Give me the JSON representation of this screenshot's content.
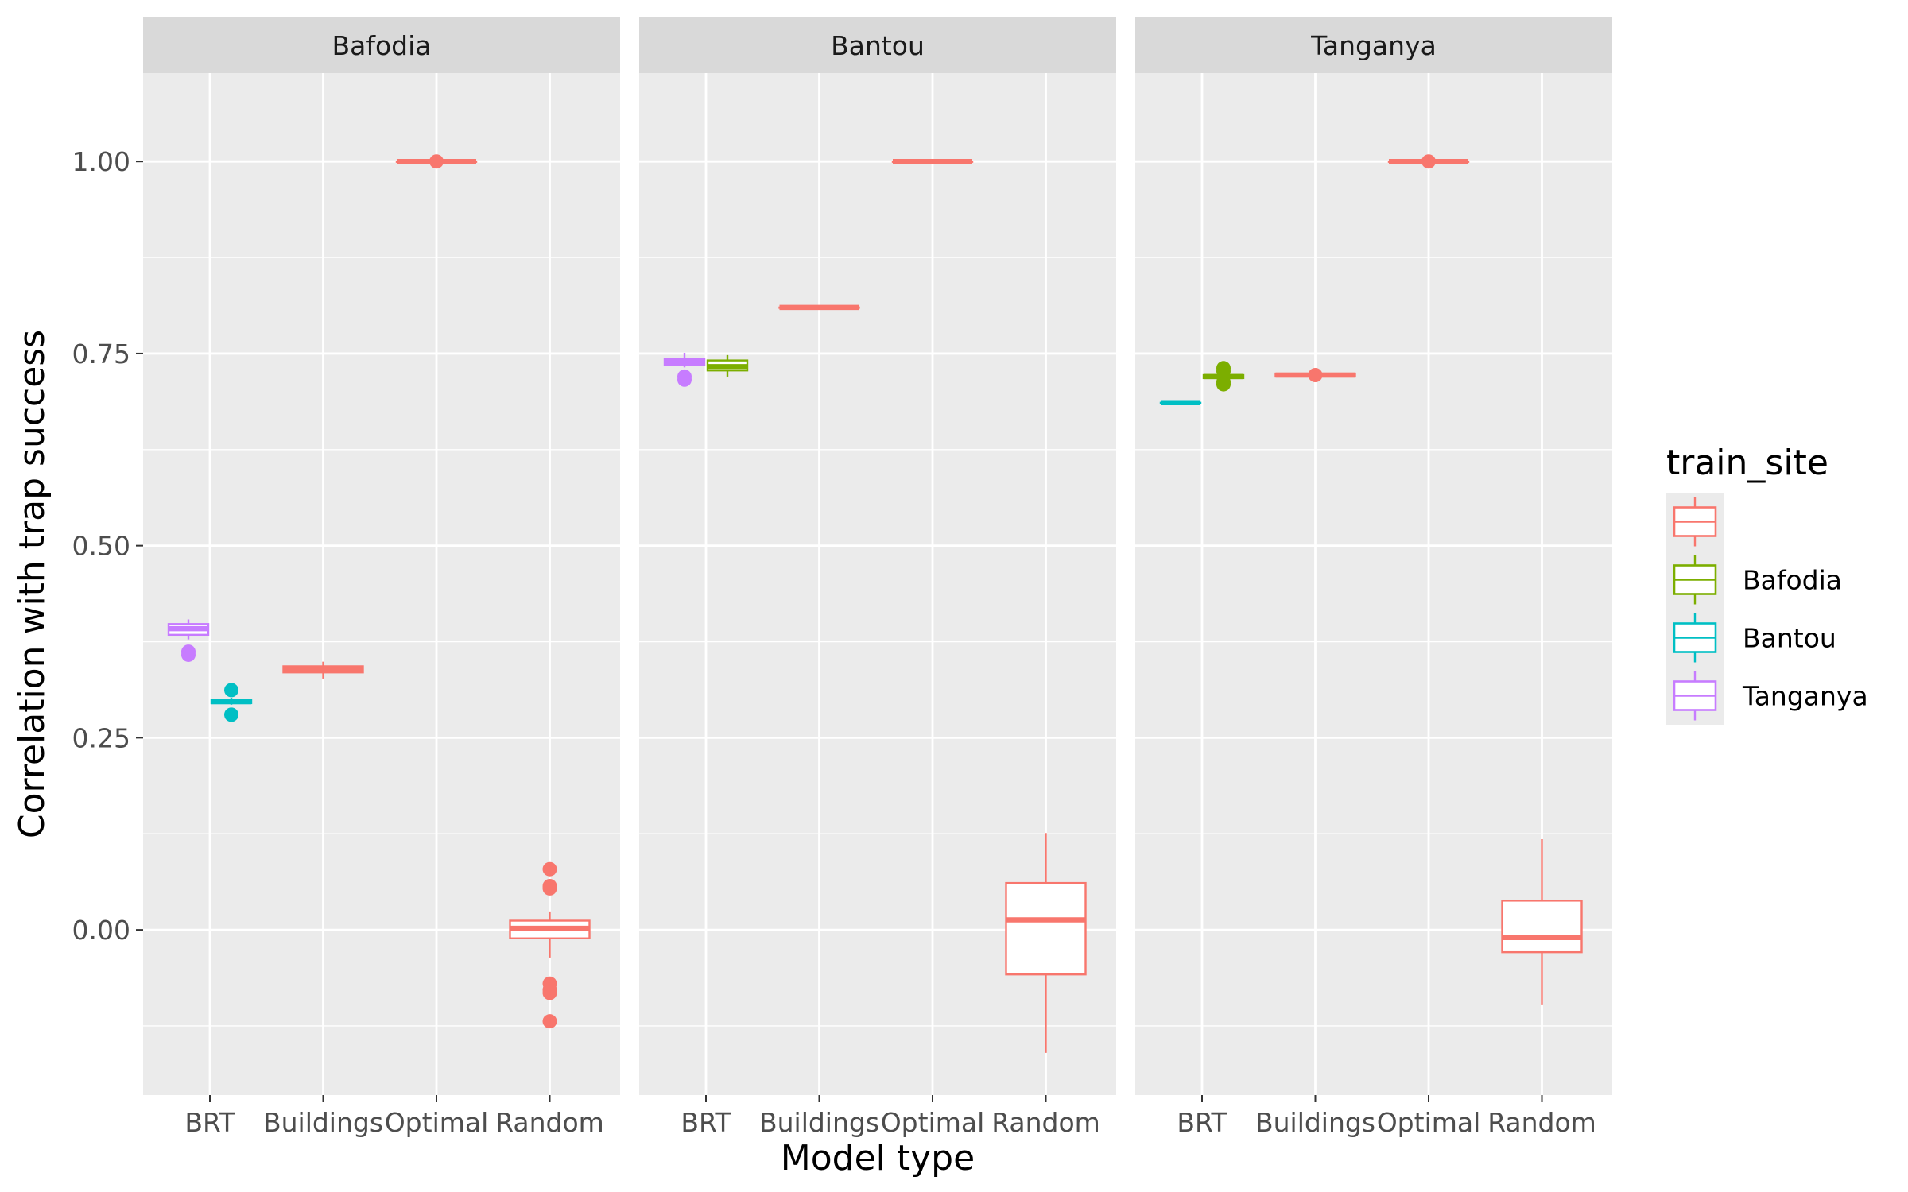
{
  "chart_data": {
    "type": "box",
    "xlabel": "Model type",
    "ylabel": "Correlation with trap success",
    "categories": [
      "BRT",
      "Buildings",
      "Optimal",
      "Random"
    ],
    "yticks": [
      "0.00",
      "0.25",
      "0.50",
      "0.75",
      "1.00"
    ],
    "ylim": [
      -0.215,
      1.115
    ],
    "grid": true,
    "legend": {
      "title": "train_site",
      "position": "right",
      "entries": [
        {
          "label": "",
          "color": "#F8766D"
        },
        {
          "label": "Bafodia",
          "color": "#7CAE00"
        },
        {
          "label": "Bantou",
          "color": "#00BFC4"
        },
        {
          "label": "Tanganya",
          "color": "#C77CFF"
        }
      ]
    },
    "panels": [
      {
        "title": "Bafodia",
        "boxes": [
          {
            "category": "BRT",
            "series": "Tanganya",
            "color": "#C77CFF",
            "offset": -1,
            "count": 2,
            "min": 0.378,
            "q1": 0.384,
            "median": 0.392,
            "q3": 0.398,
            "max": 0.404,
            "outliers": [
              0.358,
              0.362
            ]
          },
          {
            "category": "BRT",
            "series": "Bantou",
            "color": "#00BFC4",
            "offset": 1,
            "count": 2,
            "min": 0.293,
            "q1": 0.295,
            "median": 0.297,
            "q3": 0.299,
            "max": 0.302,
            "outliers": [
              0.28,
              0.312
            ]
          },
          {
            "category": "Buildings",
            "series": "",
            "color": "#F8766D",
            "offset": 0,
            "count": 1,
            "min": 0.327,
            "q1": 0.335,
            "median": 0.339,
            "q3": 0.343,
            "max": 0.349,
            "outliers": []
          },
          {
            "category": "Optimal",
            "series": "",
            "color": "#F8766D",
            "offset": 0,
            "count": 1,
            "min": 1.0,
            "q1": 1.0,
            "median": 1.0,
            "q3": 1.0,
            "max": 1.0,
            "outliers": [
              1.0
            ]
          },
          {
            "category": "Random",
            "series": "",
            "color": "#F8766D",
            "offset": 0,
            "count": 1,
            "min": -0.036,
            "q1": -0.011,
            "median": 0.002,
            "q3": 0.012,
            "max": 0.023,
            "outliers": [
              0.079,
              0.057,
              0.054,
              -0.07,
              -0.078,
              -0.082,
              -0.119
            ]
          }
        ]
      },
      {
        "title": "Bantou",
        "boxes": [
          {
            "category": "BRT",
            "series": "Tanganya",
            "color": "#C77CFF",
            "offset": -1,
            "count": 2,
            "min": 0.732,
            "q1": 0.735,
            "median": 0.739,
            "q3": 0.743,
            "max": 0.751,
            "outliers": [
              0.716,
              0.72
            ]
          },
          {
            "category": "BRT",
            "series": "Bafodia",
            "color": "#7CAE00",
            "offset": 1,
            "count": 2,
            "min": 0.72,
            "q1": 0.728,
            "median": 0.733,
            "q3": 0.741,
            "max": 0.748,
            "outliers": []
          },
          {
            "category": "Buildings",
            "series": "",
            "color": "#F8766D",
            "offset": 0,
            "count": 1,
            "min": 0.81,
            "q1": 0.81,
            "median": 0.81,
            "q3": 0.81,
            "max": 0.81,
            "outliers": []
          },
          {
            "category": "Optimal",
            "series": "",
            "color": "#F8766D",
            "offset": 0,
            "count": 1,
            "min": 1.0,
            "q1": 1.0,
            "median": 1.0,
            "q3": 1.0,
            "max": 1.0,
            "outliers": []
          },
          {
            "category": "Random",
            "series": "",
            "color": "#F8766D",
            "offset": 0,
            "count": 1,
            "min": -0.16,
            "q1": -0.058,
            "median": 0.013,
            "q3": 0.061,
            "max": 0.126,
            "outliers": []
          }
        ]
      },
      {
        "title": "Tanganya",
        "boxes": [
          {
            "category": "BRT",
            "series": "Bantou",
            "color": "#00BFC4",
            "offset": -1,
            "count": 2,
            "min": 0.686,
            "q1": 0.686,
            "median": 0.686,
            "q3": 0.686,
            "max": 0.686,
            "outliers": []
          },
          {
            "category": "BRT",
            "series": "Bafodia",
            "color": "#7CAE00",
            "offset": 1,
            "count": 2,
            "min": 0.716,
            "q1": 0.718,
            "median": 0.72,
            "q3": 0.722,
            "max": 0.725,
            "outliers": [
              0.71,
              0.713,
              0.727,
              0.731
            ]
          },
          {
            "category": "Buildings",
            "series": "",
            "color": "#F8766D",
            "offset": 0,
            "count": 1,
            "min": 0.72,
            "q1": 0.72,
            "median": 0.722,
            "q3": 0.724,
            "max": 0.724,
            "outliers": [
              0.722
            ]
          },
          {
            "category": "Optimal",
            "series": "",
            "color": "#F8766D",
            "offset": 0,
            "count": 1,
            "min": 1.0,
            "q1": 1.0,
            "median": 1.0,
            "q3": 1.0,
            "max": 1.0,
            "outliers": [
              1.0
            ]
          },
          {
            "category": "Random",
            "series": "",
            "color": "#F8766D",
            "offset": 0,
            "count": 1,
            "min": -0.098,
            "q1": -0.029,
            "median": -0.01,
            "q3": 0.038,
            "max": 0.118,
            "outliers": []
          }
        ]
      }
    ]
  }
}
